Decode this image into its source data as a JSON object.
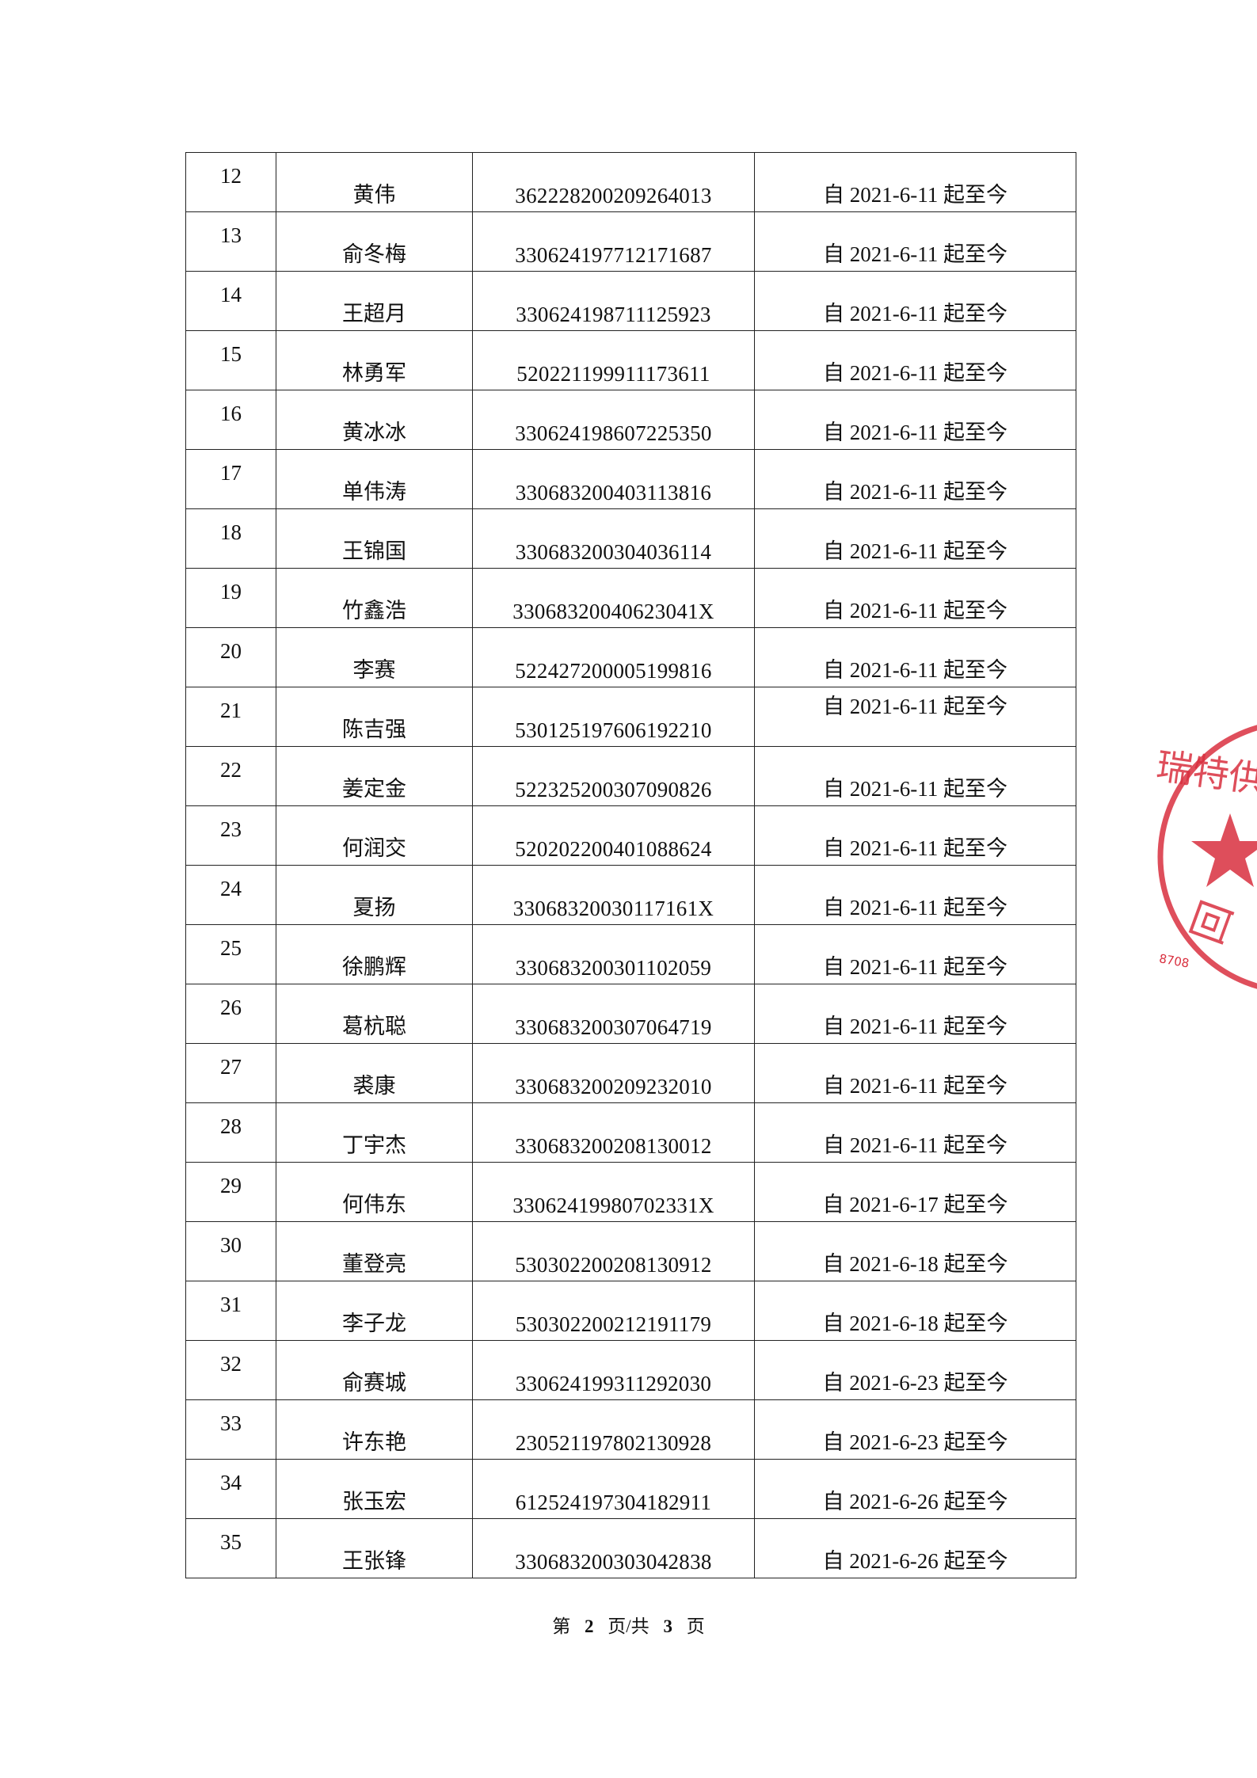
{
  "table": {
    "rows": [
      {
        "no": "12",
        "name": "黄伟",
        "id": "362228200209264013",
        "period": "自 2021-6-11 起至今"
      },
      {
        "no": "13",
        "name": "俞冬梅",
        "id": "330624197712171687",
        "period": "自 2021-6-11 起至今"
      },
      {
        "no": "14",
        "name": "王超月",
        "id": "330624198711125923",
        "period": "自 2021-6-11 起至今"
      },
      {
        "no": "15",
        "name": "林勇军",
        "id": "520221199911173611",
        "period": "自 2021-6-11 起至今"
      },
      {
        "no": "16",
        "name": "黄冰冰",
        "id": "330624198607225350",
        "period": "自 2021-6-11 起至今"
      },
      {
        "no": "17",
        "name": "单伟涛",
        "id": "330683200403113816",
        "period": "自 2021-6-11 起至今"
      },
      {
        "no": "18",
        "name": "王锦国",
        "id": "330683200304036114",
        "period": "自 2021-6-11 起至今"
      },
      {
        "no": "19",
        "name": "竹鑫浩",
        "id": "33068320040623041X",
        "period": "自 2021-6-11 起至今"
      },
      {
        "no": "20",
        "name": "李赛",
        "id": "522427200005199816",
        "period": "自 2021-6-11 起至今"
      },
      {
        "no": "21",
        "name": "陈吉强",
        "id": "530125197606192210",
        "period": "自 2021-6-11 起至今",
        "period_top": true
      },
      {
        "no": "22",
        "name": "姜定金",
        "id": "522325200307090826",
        "period": "自 2021-6-11 起至今"
      },
      {
        "no": "23",
        "name": "何润交",
        "id": "520202200401088624",
        "period": "自 2021-6-11 起至今"
      },
      {
        "no": "24",
        "name": "夏扬",
        "id": "33068320030117161X",
        "period": "自 2021-6-11 起至今"
      },
      {
        "no": "25",
        "name": "徐鹏辉",
        "id": "330683200301102059",
        "period": "自 2021-6-11 起至今"
      },
      {
        "no": "26",
        "name": "葛杭聪",
        "id": "330683200307064719",
        "period": "自 2021-6-11 起至今"
      },
      {
        "no": "27",
        "name": "裘康",
        "id": "330683200209232010",
        "period": "自 2021-6-11 起至今"
      },
      {
        "no": "28",
        "name": "丁宇杰",
        "id": "330683200208130012",
        "period": "自 2021-6-11 起至今"
      },
      {
        "no": "29",
        "name": "何伟东",
        "id": "33062419980702331X",
        "period": "自 2021-6-17 起至今"
      },
      {
        "no": "30",
        "name": "董登亮",
        "id": "530302200208130912",
        "period": "自 2021-6-18 起至今"
      },
      {
        "no": "31",
        "name": "李子龙",
        "id": "530302200212191179",
        "period": "自 2021-6-18 起至今"
      },
      {
        "no": "32",
        "name": "俞赛城",
        "id": "330624199311292030",
        "period": "自 2021-6-23 起至今"
      },
      {
        "no": "33",
        "name": "许东艳",
        "id": "230521197802130928",
        "period": "自 2021-6-23 起至今"
      },
      {
        "no": "34",
        "name": "张玉宏",
        "id": "612524197304182911",
        "period": "自 2021-6-26 起至今"
      },
      {
        "no": "35",
        "name": "王张锋",
        "id": "330683200303042838",
        "period": "自 2021-6-26 起至今"
      }
    ]
  },
  "footer": {
    "prefix": "第",
    "current_page": "2",
    "middle": "页/共",
    "total_pages": "3",
    "suffix": "页"
  },
  "stamp": {
    "text_top": "瑞特供应",
    "text_bottom": "回",
    "number": "8708",
    "color": "#d9303f"
  }
}
